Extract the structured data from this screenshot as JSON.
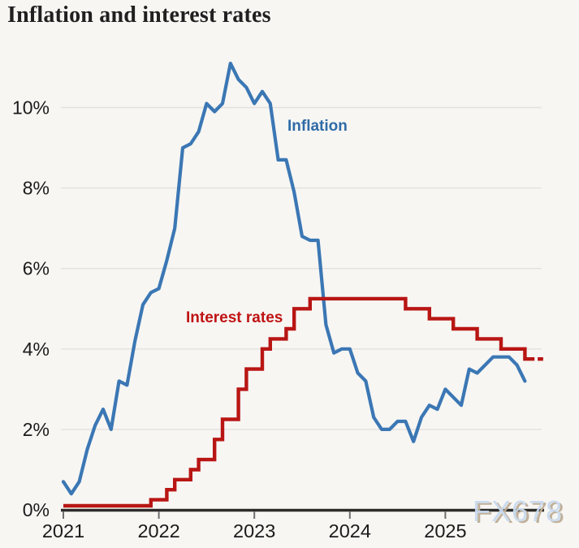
{
  "title": "Inflation and interest rates",
  "watermark": "FX678",
  "labels": {
    "inflation": "Inflation",
    "interest_rates": "Interest rates"
  },
  "axes": {
    "y_tick_labels": [
      "0%",
      "2%",
      "4%",
      "6%",
      "8%",
      "10%"
    ],
    "x_tick_labels": [
      "2021",
      "2022",
      "2023",
      "2024",
      "2025"
    ]
  },
  "colors": {
    "background": "#f7f6f3",
    "inflation_line": "#3b77b4",
    "inflation_label": "#2f6ba8",
    "interest_line": "#b81614",
    "interest_label": "#bf1313",
    "grid": "#e3e1dd",
    "axis": "#2e2c2a",
    "tick": "#6f6f6f",
    "text": "#1b1b1b",
    "title_text": "#202020",
    "watermark_fill": "#c9daee",
    "watermark_shadow": "#bfae97"
  },
  "chart_data": {
    "type": "line",
    "title": "Inflation and interest rates",
    "x_unit": "months since 2021-01",
    "x_tick_labels": [
      "2021",
      "2022",
      "2023",
      "2024",
      "2025"
    ],
    "x_tick_month_indices": [
      0,
      12,
      24,
      36,
      48
    ],
    "y_ticks": [
      0,
      2,
      4,
      6,
      8,
      10
    ],
    "y_tick_labels": [
      "0%",
      "2%",
      "4%",
      "6%",
      "8%",
      "10%"
    ],
    "ylim": [
      0,
      11.5
    ],
    "xlim_months": [
      0,
      60.5
    ],
    "grid": true,
    "legend": "inline-annotations",
    "series": [
      {
        "name": "Inflation",
        "style": "line",
        "color": "#3b77b4",
        "start_month": "2021-01",
        "monthly_values": [
          0.7,
          0.4,
          0.7,
          1.5,
          2.1,
          2.5,
          2.0,
          3.2,
          3.1,
          4.2,
          5.1,
          5.4,
          5.5,
          6.2,
          7.0,
          9.0,
          9.1,
          9.4,
          10.1,
          9.9,
          10.1,
          11.1,
          10.7,
          10.5,
          10.1,
          10.4,
          10.1,
          8.7,
          8.7,
          7.9,
          6.8,
          6.7,
          6.7,
          4.6,
          3.9,
          4.0,
          4.0,
          3.4,
          3.2,
          2.3,
          2.0,
          2.0,
          2.2,
          2.2,
          1.7,
          2.3,
          2.6,
          2.5,
          3.0,
          2.8,
          2.6,
          3.5,
          3.4,
          3.6,
          3.8,
          3.8,
          3.8,
          3.6,
          3.2
        ]
      },
      {
        "name": "Interest rates",
        "style": "step",
        "color": "#b81614",
        "rate_changes": [
          [
            0,
            0.1
          ],
          [
            11,
            0.25
          ],
          [
            13,
            0.5
          ],
          [
            14,
            0.75
          ],
          [
            16,
            1.0
          ],
          [
            17,
            1.25
          ],
          [
            19,
            1.75
          ],
          [
            20,
            2.25
          ],
          [
            22,
            3.0
          ],
          [
            23,
            3.5
          ],
          [
            25,
            4.0
          ],
          [
            26,
            4.25
          ],
          [
            28,
            4.5
          ],
          [
            29,
            5.0
          ],
          [
            31,
            5.25
          ],
          [
            43,
            5.0
          ],
          [
            46,
            4.75
          ],
          [
            49,
            4.5
          ],
          [
            52,
            4.25
          ],
          [
            55,
            4.0
          ],
          [
            58,
            3.75
          ]
        ],
        "end_month_index": 59.2,
        "forecast_dash": {
          "start_month_index": 59.6,
          "end_month_index": 60.3,
          "value": 3.75
        }
      }
    ]
  }
}
